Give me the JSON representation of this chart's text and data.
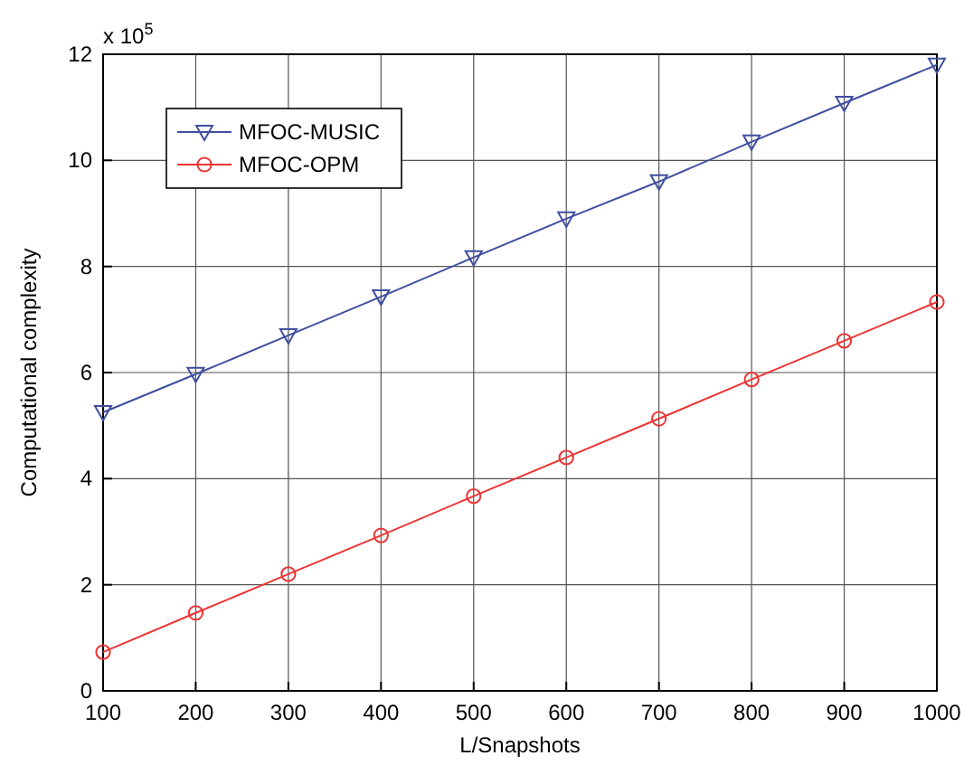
{
  "chart_data": {
    "type": "line",
    "xlabel": "L/Snapshots",
    "ylabel": "Computational complexity",
    "annotations": [
      "x 10$^{5}$"
    ],
    "x": [
      100,
      200,
      300,
      400,
      500,
      600,
      700,
      800,
      900,
      1000
    ],
    "series": [
      {
        "name": "MFOC-MUSIC",
        "color": "#3f4fa0",
        "marker": "triangle",
        "values": [
          5.25,
          5.97,
          6.7,
          7.43,
          8.17,
          8.9,
          9.6,
          10.35,
          11.08,
          11.8
        ]
      },
      {
        "name": "MFOC-OPM",
        "color": "#ee3333",
        "marker": "circle",
        "values": [
          0.73,
          1.47,
          2.2,
          2.93,
          3.67,
          4.4,
          5.13,
          5.87,
          6.6,
          7.33
        ]
      }
    ],
    "xlim": [
      100,
      1000
    ],
    "xticks": [
      100,
      200,
      300,
      400,
      500,
      600,
      700,
      800,
      900,
      1000
    ],
    "ylim": [
      0,
      12
    ],
    "yticks": [
      0,
      2,
      4,
      6,
      8,
      10,
      12
    ],
    "grid": true,
    "legend": "top left",
    "line_style": "solid"
  }
}
